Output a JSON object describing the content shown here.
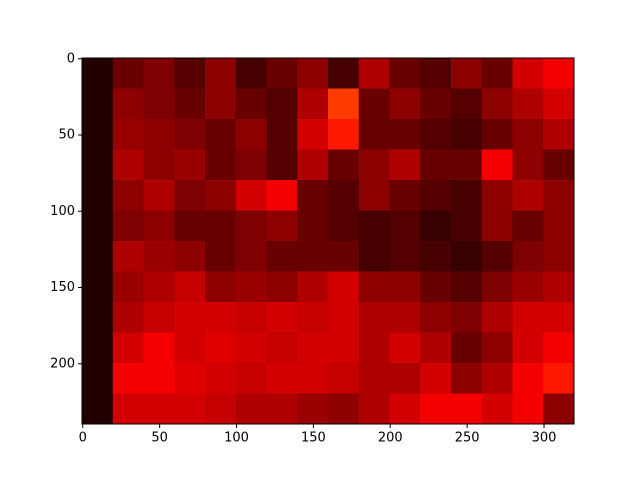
{
  "chart_data": {
    "type": "heatmap",
    "colormap": "hot",
    "xlim": [
      -0.5,
      319.5
    ],
    "ylim": [
      239.5,
      -0.5
    ],
    "xticks": [
      0,
      50,
      100,
      150,
      200,
      250,
      300
    ],
    "yticks": [
      0,
      50,
      100,
      150,
      200
    ],
    "z": [
      [
        0.05,
        0.15,
        0.18,
        0.12,
        0.2,
        0.1,
        0.15,
        0.2,
        0.1,
        0.25,
        0.15,
        0.12,
        0.2,
        0.15,
        0.3,
        0.35
      ],
      [
        0.05,
        0.2,
        0.18,
        0.15,
        0.2,
        0.15,
        0.12,
        0.25,
        0.45,
        0.15,
        0.2,
        0.15,
        0.12,
        0.2,
        0.25,
        0.3
      ],
      [
        0.05,
        0.22,
        0.2,
        0.18,
        0.15,
        0.2,
        0.12,
        0.3,
        0.4,
        0.15,
        0.15,
        0.12,
        0.1,
        0.15,
        0.2,
        0.25
      ],
      [
        0.05,
        0.25,
        0.2,
        0.22,
        0.15,
        0.18,
        0.12,
        0.25,
        0.15,
        0.2,
        0.25,
        0.15,
        0.15,
        0.35,
        0.2,
        0.15
      ],
      [
        0.05,
        0.2,
        0.25,
        0.18,
        0.2,
        0.3,
        0.35,
        0.15,
        0.12,
        0.2,
        0.15,
        0.12,
        0.1,
        0.2,
        0.25,
        0.2
      ],
      [
        0.05,
        0.18,
        0.2,
        0.15,
        0.15,
        0.18,
        0.2,
        0.15,
        0.12,
        0.1,
        0.12,
        0.08,
        0.1,
        0.2,
        0.15,
        0.2
      ],
      [
        0.05,
        0.25,
        0.22,
        0.2,
        0.15,
        0.18,
        0.15,
        0.15,
        0.15,
        0.1,
        0.12,
        0.1,
        0.08,
        0.12,
        0.18,
        0.2
      ],
      [
        0.05,
        0.22,
        0.25,
        0.28,
        0.2,
        0.22,
        0.2,
        0.25,
        0.3,
        0.2,
        0.2,
        0.15,
        0.12,
        0.18,
        0.22,
        0.25
      ],
      [
        0.05,
        0.25,
        0.28,
        0.3,
        0.3,
        0.28,
        0.3,
        0.28,
        0.3,
        0.25,
        0.25,
        0.2,
        0.18,
        0.25,
        0.3,
        0.3
      ],
      [
        0.05,
        0.3,
        0.35,
        0.3,
        0.32,
        0.3,
        0.28,
        0.3,
        0.3,
        0.25,
        0.3,
        0.25,
        0.15,
        0.2,
        0.3,
        0.35
      ],
      [
        0.05,
        0.35,
        0.35,
        0.32,
        0.3,
        0.28,
        0.3,
        0.3,
        0.28,
        0.25,
        0.25,
        0.3,
        0.2,
        0.25,
        0.35,
        0.4
      ],
      [
        0.05,
        0.3,
        0.3,
        0.3,
        0.28,
        0.25,
        0.25,
        0.22,
        0.2,
        0.25,
        0.3,
        0.35,
        0.35,
        0.3,
        0.35,
        0.2
      ]
    ]
  }
}
